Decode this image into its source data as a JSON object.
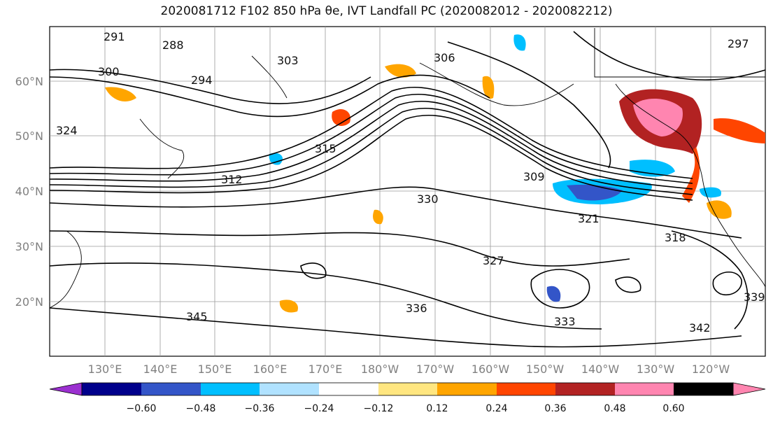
{
  "title": "2020081712 F102 850 hPa θe, IVT Landfall PC (2020082012 - 2020082212)",
  "map": {
    "lat_labels": [
      "60°N",
      "50°N",
      "40°N",
      "30°N",
      "20°N"
    ],
    "lon_labels": [
      "130°E",
      "140°E",
      "150°E",
      "160°E",
      "170°E",
      "180°W",
      "170°W",
      "160°W",
      "150°W",
      "140°W",
      "130°W",
      "120°W"
    ],
    "contour_labels": [
      "291",
      "288",
      "294",
      "297",
      "300",
      "303",
      "306",
      "309",
      "312",
      "315",
      "318",
      "321",
      "324",
      "327",
      "330",
      "333",
      "336",
      "339",
      "342",
      "345"
    ]
  },
  "colorbar": {
    "ticks": [
      "−0.60",
      "−0.48",
      "−0.36",
      "−0.24",
      "−0.12",
      "0.12",
      "0.24",
      "0.36",
      "0.48",
      "0.60"
    ],
    "colors": [
      "#9b30d0",
      "#00008b",
      "#3355c8",
      "#00bfff",
      "#b0e2ff",
      "#ffffff",
      "#ffe680",
      "#ffa500",
      "#ff4500",
      "#b22222",
      "#ff85b0"
    ]
  }
}
